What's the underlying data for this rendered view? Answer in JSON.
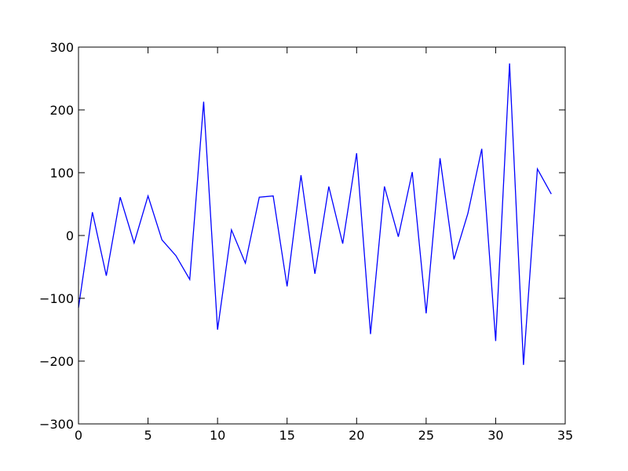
{
  "chart_data": {
    "type": "line",
    "title": "",
    "xlabel": "",
    "ylabel": "",
    "xlim": [
      0,
      35
    ],
    "ylim": [
      -300,
      300
    ],
    "x_ticks": [
      0,
      5,
      10,
      15,
      20,
      25,
      30,
      35
    ],
    "y_ticks": [
      -300,
      -200,
      -100,
      0,
      100,
      200,
      300
    ],
    "x_tick_labels": [
      "0",
      "5",
      "10",
      "15",
      "20",
      "25",
      "30",
      "35"
    ],
    "y_tick_labels": [
      "−300",
      "−200",
      "−100",
      "0",
      "100",
      "200",
      "300"
    ],
    "grid": false,
    "line_color": "#0000ff",
    "series": [
      {
        "x": [
          0,
          1,
          2,
          3,
          4,
          5,
          6,
          7,
          8,
          9,
          10,
          11,
          12,
          13,
          14,
          15,
          16,
          17,
          18,
          19,
          20,
          21,
          22,
          23,
          24,
          25,
          26,
          27,
          28,
          29,
          30,
          31,
          32,
          33,
          34
        ],
        "values": [
          -115,
          37,
          -64,
          61,
          -12,
          63,
          -7,
          -32,
          -70,
          213,
          -150,
          9,
          -44,
          61,
          63,
          -81,
          96,
          -61,
          78,
          -13,
          131,
          -157,
          78,
          -2,
          101,
          -124,
          123,
          -38,
          35,
          138,
          -168,
          274,
          -206,
          106,
          66
        ]
      }
    ]
  }
}
